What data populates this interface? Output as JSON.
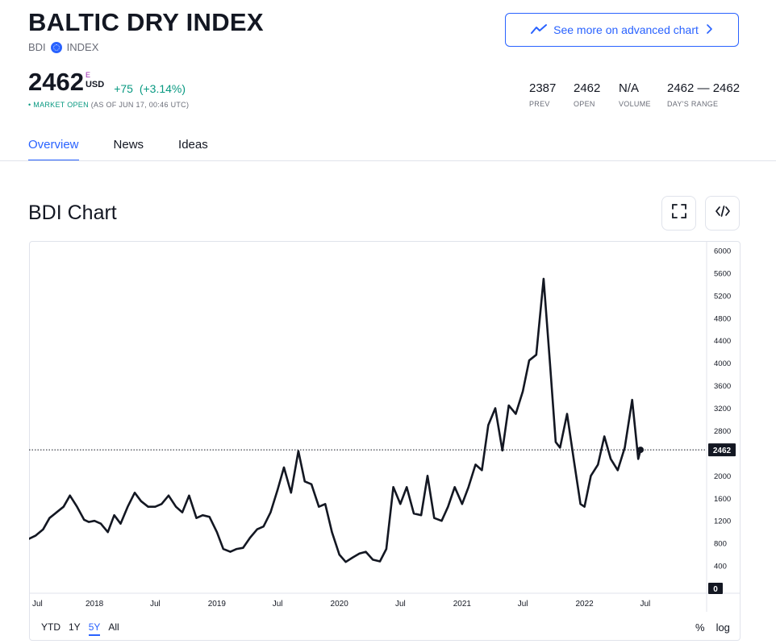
{
  "header": {
    "title": "BALTIC DRY INDEX",
    "symbol": "BDI",
    "type": "INDEX",
    "advanced_chart_label": "See more on advanced chart"
  },
  "quote": {
    "price": "2462",
    "price_marker": "E",
    "currency": "USD",
    "change": "+75",
    "change_pct": "(+3.14%)",
    "market_status": "MARKET OPEN",
    "as_of": "(AS OF JUN 17, 00:46 UTC)"
  },
  "stats": [
    {
      "value": "2387",
      "label": "PREV"
    },
    {
      "value": "2462",
      "label": "OPEN"
    },
    {
      "value": "N/A",
      "label": "VOLUME"
    },
    {
      "value": "2462 — 2462",
      "label": "DAY'S RANGE"
    }
  ],
  "tabs": [
    {
      "label": "Overview",
      "active": true
    },
    {
      "label": "News",
      "active": false
    },
    {
      "label": "Ideas",
      "active": false
    }
  ],
  "chart_section": {
    "title": "BDI Chart",
    "ranges": [
      {
        "label": "YTD",
        "active": false
      },
      {
        "label": "1Y",
        "active": false
      },
      {
        "label": "5Y",
        "active": true
      },
      {
        "label": "All",
        "active": false
      }
    ],
    "percent_label": "%",
    "log_label": "log"
  },
  "colors": {
    "accent": "#2962ff",
    "positive": "#089981",
    "line": "#131722",
    "grid_border": "#e0e3eb"
  },
  "icons": {
    "advanced_chart": "trend-line-icon",
    "chevron": "chevron-right-icon",
    "fullscreen": "fullscreen-icon",
    "embed": "code-embed-icon",
    "symbol": "globe-icon"
  },
  "chart_data": {
    "type": "line",
    "title": "",
    "xlabel": "",
    "ylabel": "",
    "ylim": [
      0,
      6000
    ],
    "yticks": [
      0,
      400,
      800,
      1200,
      1600,
      2000,
      2400,
      2800,
      3200,
      3600,
      4000,
      4400,
      4800,
      5200,
      5600,
      6000
    ],
    "xlim": [
      "2017-06-20",
      "2022-12-31"
    ],
    "x_ticks": [
      {
        "date": "2017-07-01",
        "label": "Jul"
      },
      {
        "date": "2018-01-01",
        "label": "2018"
      },
      {
        "date": "2018-07-01",
        "label": "Jul"
      },
      {
        "date": "2019-01-01",
        "label": "2019"
      },
      {
        "date": "2019-07-01",
        "label": "Jul"
      },
      {
        "date": "2020-01-01",
        "label": "2020"
      },
      {
        "date": "2020-07-01",
        "label": "Jul"
      },
      {
        "date": "2021-01-01",
        "label": "2021"
      },
      {
        "date": "2021-07-01",
        "label": "Jul"
      },
      {
        "date": "2022-01-01",
        "label": "2022"
      },
      {
        "date": "2022-07-01",
        "label": "Jul"
      }
    ],
    "last_value": 2462,
    "last_value_label": "2462",
    "zero_label": "0",
    "series": [
      {
        "x": [
          "2017-06-20",
          "2017-07-10",
          "2017-08-01",
          "2017-08-20",
          "2017-09-10",
          "2017-10-01",
          "2017-10-20",
          "2017-11-10",
          "2017-12-01",
          "2017-12-15",
          "2018-01-01",
          "2018-01-20",
          "2018-02-10",
          "2018-03-01",
          "2018-03-20",
          "2018-04-10",
          "2018-05-01",
          "2018-05-20",
          "2018-06-10",
          "2018-07-01",
          "2018-07-20",
          "2018-08-10",
          "2018-09-01",
          "2018-09-20",
          "2018-10-10",
          "2018-11-01",
          "2018-11-20",
          "2018-12-10",
          "2019-01-01",
          "2019-01-20",
          "2019-02-10",
          "2019-03-01",
          "2019-03-20",
          "2019-04-10",
          "2019-05-01",
          "2019-05-20",
          "2019-06-10",
          "2019-07-01",
          "2019-07-20",
          "2019-08-10",
          "2019-09-01",
          "2019-09-20",
          "2019-10-10",
          "2019-11-01",
          "2019-11-20",
          "2019-12-10",
          "2020-01-01",
          "2020-01-20",
          "2020-02-10",
          "2020-03-01",
          "2020-03-20",
          "2020-04-10",
          "2020-05-01",
          "2020-05-20",
          "2020-06-10",
          "2020-07-01",
          "2020-07-20",
          "2020-08-10",
          "2020-09-01",
          "2020-09-20",
          "2020-10-10",
          "2020-11-01",
          "2020-11-20",
          "2020-12-10",
          "2021-01-01",
          "2021-01-20",
          "2021-02-10",
          "2021-03-01",
          "2021-03-20",
          "2021-04-10",
          "2021-05-01",
          "2021-05-20",
          "2021-06-10",
          "2021-07-01",
          "2021-07-20",
          "2021-08-10",
          "2021-09-01",
          "2021-09-20",
          "2021-10-07",
          "2021-10-20",
          "2021-11-10",
          "2021-12-01",
          "2021-12-20",
          "2022-01-01",
          "2022-01-20",
          "2022-02-10",
          "2022-03-01",
          "2022-03-20",
          "2022-04-10",
          "2022-05-01",
          "2022-05-23",
          "2022-06-10",
          "2022-06-17"
        ],
        "y": [
          880,
          940,
          1050,
          1250,
          1350,
          1450,
          1650,
          1450,
          1220,
          1180,
          1200,
          1150,
          1000,
          1300,
          1150,
          1450,
          1700,
          1550,
          1450,
          1450,
          1500,
          1650,
          1450,
          1350,
          1650,
          1250,
          1300,
          1270,
          1000,
          700,
          650,
          700,
          720,
          900,
          1050,
          1100,
          1350,
          1750,
          2150,
          1700,
          2440,
          1900,
          1850,
          1450,
          1500,
          1000,
          600,
          470,
          550,
          620,
          650,
          510,
          480,
          700,
          1800,
          1500,
          1800,
          1330,
          1300,
          2000,
          1250,
          1200,
          1450,
          1800,
          1500,
          1800,
          2200,
          2100,
          2900,
          3200,
          2450,
          3250,
          3100,
          3500,
          4050,
          4150,
          5500,
          4000,
          2600,
          2500,
          3100,
          2250,
          1500,
          1450,
          2000,
          2200,
          2700,
          2300,
          2100,
          2500,
          3350,
          2300,
          2462
        ]
      }
    ]
  }
}
